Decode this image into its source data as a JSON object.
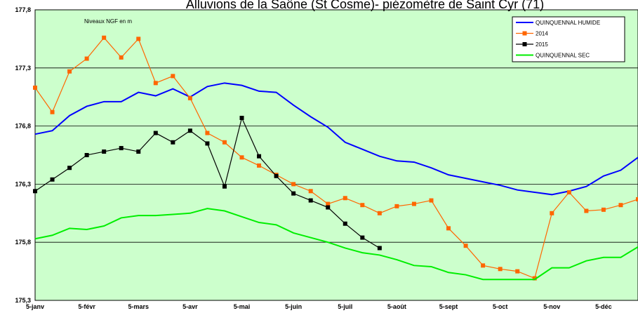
{
  "chart_data": {
    "type": "line",
    "title": "Alluvions de la Saône (St Cosme)- piézomètre de Saint Cyr (71)",
    "annotation": "Niveaux NGF en m",
    "categories": [
      "5-janv",
      null,
      null,
      "5-févr",
      null,
      null,
      "5-mars",
      null,
      null,
      "5-avr",
      null,
      null,
      "5-mai",
      null,
      null,
      "5-juin",
      null,
      null,
      "5-juil",
      null,
      null,
      "5-août",
      null,
      null,
      "5-sept",
      null,
      null,
      "5-oct",
      null,
      null,
      "5-nov",
      null,
      null,
      "5-déc",
      null,
      null
    ],
    "ylim": [
      175.3,
      177.8
    ],
    "yticks": [
      {
        "value": 175.3,
        "label": "175,3"
      },
      {
        "value": 175.8,
        "label": "175,8"
      },
      {
        "value": 176.3,
        "label": "176,3"
      },
      {
        "value": 176.8,
        "label": "176,8"
      },
      {
        "value": 177.3,
        "label": "177,3"
      },
      {
        "value": 177.8,
        "label": "177,8"
      }
    ],
    "grid": true,
    "legend": "top-right",
    "series": [
      {
        "name": "QUINQUENNAL HUMIDE",
        "color": "#0000ff",
        "marker": false,
        "values": [
          176.73,
          176.76,
          176.89,
          176.97,
          177.01,
          177.01,
          177.09,
          177.06,
          177.12,
          177.05,
          177.14,
          177.17,
          177.15,
          177.1,
          177.09,
          176.98,
          176.88,
          176.79,
          176.66,
          176.6,
          176.54,
          176.5,
          176.49,
          176.44,
          176.38,
          176.35,
          176.32,
          176.29,
          176.25,
          176.23,
          176.21,
          176.24,
          176.28,
          176.37,
          176.42,
          176.53
        ]
      },
      {
        "name": "2014",
        "color": "#ff6600",
        "marker": true,
        "values": [
          177.13,
          176.92,
          177.27,
          177.38,
          177.56,
          177.39,
          177.55,
          177.17,
          177.23,
          177.04,
          176.74,
          176.66,
          176.53,
          176.46,
          176.38,
          176.3,
          176.24,
          176.13,
          176.18,
          176.12,
          176.05,
          176.11,
          176.13,
          176.16,
          175.92,
          175.77,
          175.6,
          175.57,
          175.55,
          175.49,
          176.05,
          176.23,
          176.07,
          176.08,
          176.12,
          176.17
        ]
      },
      {
        "name": "2015",
        "color": "#000000",
        "marker": true,
        "values": [
          176.24,
          176.34,
          176.44,
          176.55,
          176.58,
          176.61,
          176.58,
          176.74,
          176.66,
          176.76,
          176.65,
          176.28,
          176.87,
          176.54,
          176.37,
          176.22,
          176.16,
          176.1,
          175.96,
          175.84,
          175.75,
          null,
          null,
          null,
          null,
          null,
          null,
          null,
          null,
          null,
          null,
          null,
          null,
          null,
          null,
          null
        ]
      },
      {
        "name": "QUINQUENNAL SEC",
        "color": "#00ee00",
        "marker": false,
        "values": [
          175.83,
          175.86,
          175.92,
          175.91,
          175.94,
          176.01,
          176.03,
          176.03,
          176.04,
          176.05,
          176.09,
          176.07,
          176.02,
          175.97,
          175.95,
          175.88,
          175.84,
          175.8,
          175.75,
          175.71,
          175.69,
          175.65,
          175.6,
          175.59,
          175.54,
          175.52,
          175.48,
          175.48,
          175.48,
          175.48,
          175.58,
          175.58,
          175.64,
          175.67,
          175.67,
          175.76
        ]
      }
    ]
  }
}
